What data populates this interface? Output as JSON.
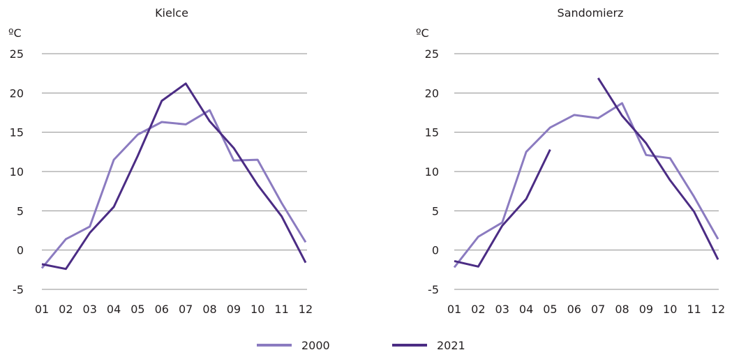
{
  "colors": {
    "series_2000": "#8b7bc0",
    "series_2021": "#4b2c84",
    "grid": "#8f8f8f",
    "text": "#231f20"
  },
  "legend": {
    "items": [
      {
        "label": "2000",
        "color": "#8b7bc0"
      },
      {
        "label": "2021",
        "color": "#4b2c84"
      }
    ]
  },
  "chart_data": [
    {
      "type": "line",
      "title": "Kielce",
      "ylabel": "ºC",
      "ylim": [
        -5,
        25
      ],
      "yticks": [
        "25",
        "20",
        "15",
        "10",
        "5",
        "0",
        "-5"
      ],
      "x": [
        "01",
        "02",
        "03",
        "04",
        "05",
        "06",
        "07",
        "08",
        "09",
        "10",
        "11",
        "12"
      ],
      "grid": true,
      "legend_position": "bottom",
      "series": [
        {
          "name": "2000",
          "values": [
            -2.3,
            1.4,
            3.0,
            11.5,
            14.7,
            16.3,
            16.0,
            17.8,
            11.4,
            11.5,
            6.0,
            1.0
          ]
        },
        {
          "name": "2021",
          "values": [
            -1.8,
            -2.4,
            2.2,
            5.5,
            12.0,
            19.0,
            21.2,
            16.4,
            13.0,
            8.3,
            4.3,
            -1.6
          ]
        }
      ]
    },
    {
      "type": "line",
      "title": "Sandomierz",
      "ylabel": "ºC",
      "ylim": [
        -5,
        25
      ],
      "yticks": [
        "25",
        "20",
        "15",
        "10",
        "5",
        "0",
        "-5"
      ],
      "x": [
        "01",
        "02",
        "03",
        "04",
        "05",
        "06",
        "07",
        "08",
        "09",
        "10",
        "11",
        "12"
      ],
      "grid": true,
      "legend_position": "bottom",
      "series": [
        {
          "name": "2000",
          "values": [
            -2.2,
            1.7,
            3.5,
            12.5,
            15.6,
            17.2,
            16.8,
            18.7,
            12.1,
            11.7,
            6.8,
            1.4
          ]
        },
        {
          "name": "2021",
          "values": [
            -1.4,
            -2.1,
            3.1,
            6.5,
            12.8,
            null,
            21.9,
            17.1,
            13.6,
            8.9,
            4.9,
            -1.2
          ]
        }
      ]
    }
  ]
}
